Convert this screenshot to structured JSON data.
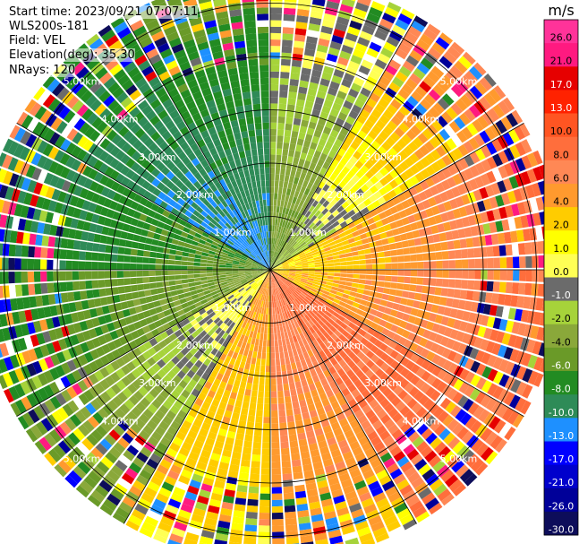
{
  "info": {
    "start_time": "Start time: 2023/09/21 07:07:11",
    "instrument": "WLS200s-181",
    "field": "Field: VEL",
    "elevation": "Elevation(deg): 35.30",
    "nrays": "NRays: 120"
  },
  "chart_data": {
    "type": "heatmap",
    "projection": "polar (PPI)",
    "title": "",
    "range_rings_km": [
      1.0,
      2.0,
      3.0,
      4.0,
      5.0
    ],
    "range_ring_labels": [
      "1.00km",
      "2.00km",
      "3.00km",
      "4.00km",
      "5.00km"
    ],
    "max_range_km": 5.5,
    "spokes_deg_clockwise_from_north": [
      0,
      30,
      60,
      90,
      120,
      150,
      180,
      210,
      240,
      270,
      300,
      330
    ],
    "colorbar": {
      "unit": "m/s",
      "tick_labels": [
        "26.0",
        "21.0",
        "17.0",
        "13.0",
        "10.0",
        "8.0",
        "6.0",
        "4.0",
        "2.0",
        "1.0",
        "0.0",
        "-1.0",
        "-2.0",
        "-4.0",
        "-6.0",
        "-8.0",
        "-10.0",
        "-13.0",
        "-17.0",
        "-21.0",
        "-26.0",
        "-30.0"
      ],
      "bins": [
        {
          "lo": 26,
          "hi": 30,
          "color": "#ff3399"
        },
        {
          "lo": 21,
          "hi": 26,
          "color": "#ff1a80"
        },
        {
          "lo": 17,
          "hi": 21,
          "color": "#e60000"
        },
        {
          "lo": 13,
          "hi": 17,
          "color": "#ff2200"
        },
        {
          "lo": 10,
          "hi": 13,
          "color": "#ff5522"
        },
        {
          "lo": 8,
          "hi": 10,
          "color": "#ff6e3c"
        },
        {
          "lo": 6,
          "hi": 8,
          "color": "#ff8855"
        },
        {
          "lo": 4,
          "hi": 6,
          "color": "#ff9a2e"
        },
        {
          "lo": 2,
          "hi": 4,
          "color": "#ffcc00"
        },
        {
          "lo": 1,
          "hi": 2,
          "color": "#ffff00"
        },
        {
          "lo": 0,
          "hi": 1,
          "color": "#ffff55"
        },
        {
          "lo": -1,
          "hi": 0,
          "color": "#6b6b6b"
        },
        {
          "lo": -2,
          "hi": -1,
          "color": "#a6d33a"
        },
        {
          "lo": -4,
          "hi": -2,
          "color": "#8aa83a"
        },
        {
          "lo": -6,
          "hi": -4,
          "color": "#6a9a28"
        },
        {
          "lo": -8,
          "hi": -6,
          "color": "#228b22"
        },
        {
          "lo": -10,
          "hi": -8,
          "color": "#2e8b57"
        },
        {
          "lo": -13,
          "hi": -10,
          "color": "#1e90ff"
        },
        {
          "lo": -17,
          "hi": -13,
          "color": "#0000ff"
        },
        {
          "lo": -21,
          "hi": -17,
          "color": "#0000cc"
        },
        {
          "lo": -26,
          "hi": -21,
          "color": "#000099"
        },
        {
          "lo": -30,
          "hi": -26,
          "color": "#0d0d5a"
        }
      ]
    },
    "velocity_sectors": [
      {
        "az_from": 0,
        "az_to": 30,
        "inner_v": -5,
        "outer_v": 1
      },
      {
        "az_from": 30,
        "az_to": 60,
        "inner_v": -3,
        "outer_v": 7
      },
      {
        "az_from": 60,
        "az_to": 90,
        "inner_v": 1.5,
        "outer_v": 9
      },
      {
        "az_from": 90,
        "az_to": 120,
        "inner_v": 3,
        "outer_v": 9
      },
      {
        "az_from": 120,
        "az_to": 150,
        "inner_v": 9,
        "outer_v": 8
      },
      {
        "az_from": 150,
        "az_to": 180,
        "inner_v": 8,
        "outer_v": 4
      },
      {
        "az_from": 180,
        "az_to": 210,
        "inner_v": 5,
        "outer_v": 1.5
      },
      {
        "az_from": 210,
        "az_to": 240,
        "inner_v": 1.5,
        "outer_v": -5
      },
      {
        "az_from": 240,
        "az_to": 270,
        "inner_v": -3,
        "outer_v": -7
      },
      {
        "az_from": 270,
        "az_to": 300,
        "inner_v": -5,
        "outer_v": -9
      },
      {
        "az_from": 300,
        "az_to": 330,
        "inner_v": -11,
        "outer_v": -7
      },
      {
        "az_from": 330,
        "az_to": 360,
        "inner_v": -11,
        "outer_v": -5
      }
    ],
    "noisy_outer_range_km": 4.0,
    "grid": true,
    "legend": "right"
  }
}
